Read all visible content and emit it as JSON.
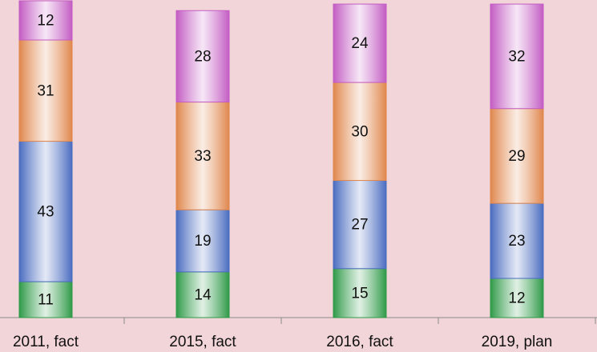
{
  "chart_data": {
    "type": "bar",
    "stacked": true,
    "categories": [
      "2011, fact",
      "2015, fact",
      "2016, fact",
      "2019, plan"
    ],
    "series": [
      {
        "color": "#2f9a48",
        "values": [
          11,
          14,
          15,
          12
        ]
      },
      {
        "color": "#4a6cc0",
        "values": [
          43,
          19,
          27,
          23
        ]
      },
      {
        "color": "#e0874d",
        "values": [
          31,
          33,
          30,
          29
        ]
      },
      {
        "color": "#c35cc3",
        "values": [
          12,
          28,
          24,
          32
        ]
      }
    ]
  }
}
